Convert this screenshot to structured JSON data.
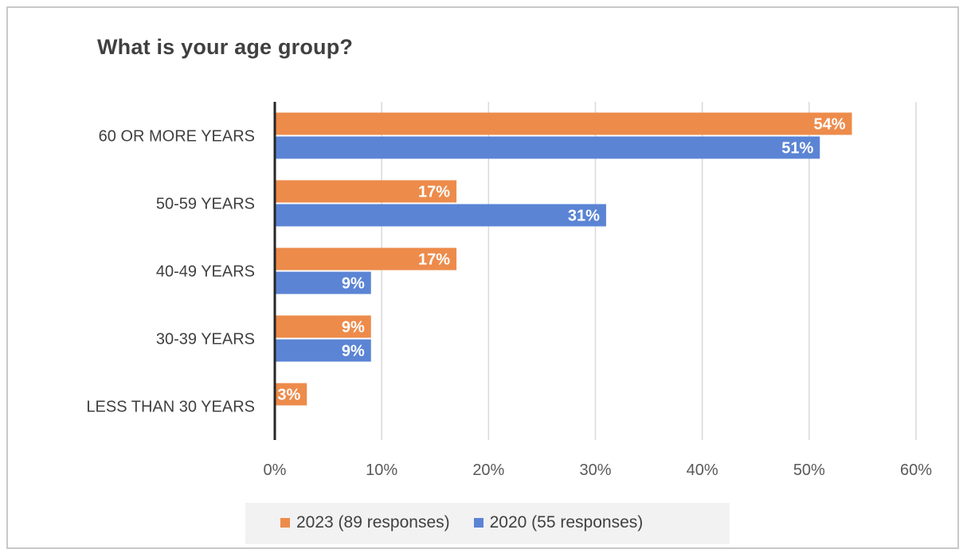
{
  "chart_data": {
    "type": "bar",
    "orientation": "horizontal",
    "title": "What is your age group?",
    "categories": [
      "60 OR MORE YEARS",
      "50-59 YEARS",
      "40-49 YEARS",
      "30-39 YEARS",
      "LESS THAN 30 YEARS"
    ],
    "series": [
      {
        "name": "2023 (89 responses)",
        "color": "#ED8B4B",
        "values": [
          54,
          17,
          17,
          9,
          3
        ],
        "labels": [
          "54%",
          "17%",
          "17%",
          "9%",
          "3%"
        ]
      },
      {
        "name": "2020 (55 responses)",
        "color": "#5B84D4",
        "values": [
          51,
          31,
          9,
          9,
          null
        ],
        "labels": [
          "51%",
          "31%",
          "9%",
          "9%",
          ""
        ]
      }
    ],
    "xlim": [
      0,
      60
    ],
    "xticks": [
      0,
      10,
      20,
      30,
      40,
      50,
      60
    ],
    "xtick_labels": [
      "0%",
      "10%",
      "20%",
      "30%",
      "40%",
      "50%",
      "60%"
    ],
    "grid": true,
    "legend_position": "bottom"
  }
}
